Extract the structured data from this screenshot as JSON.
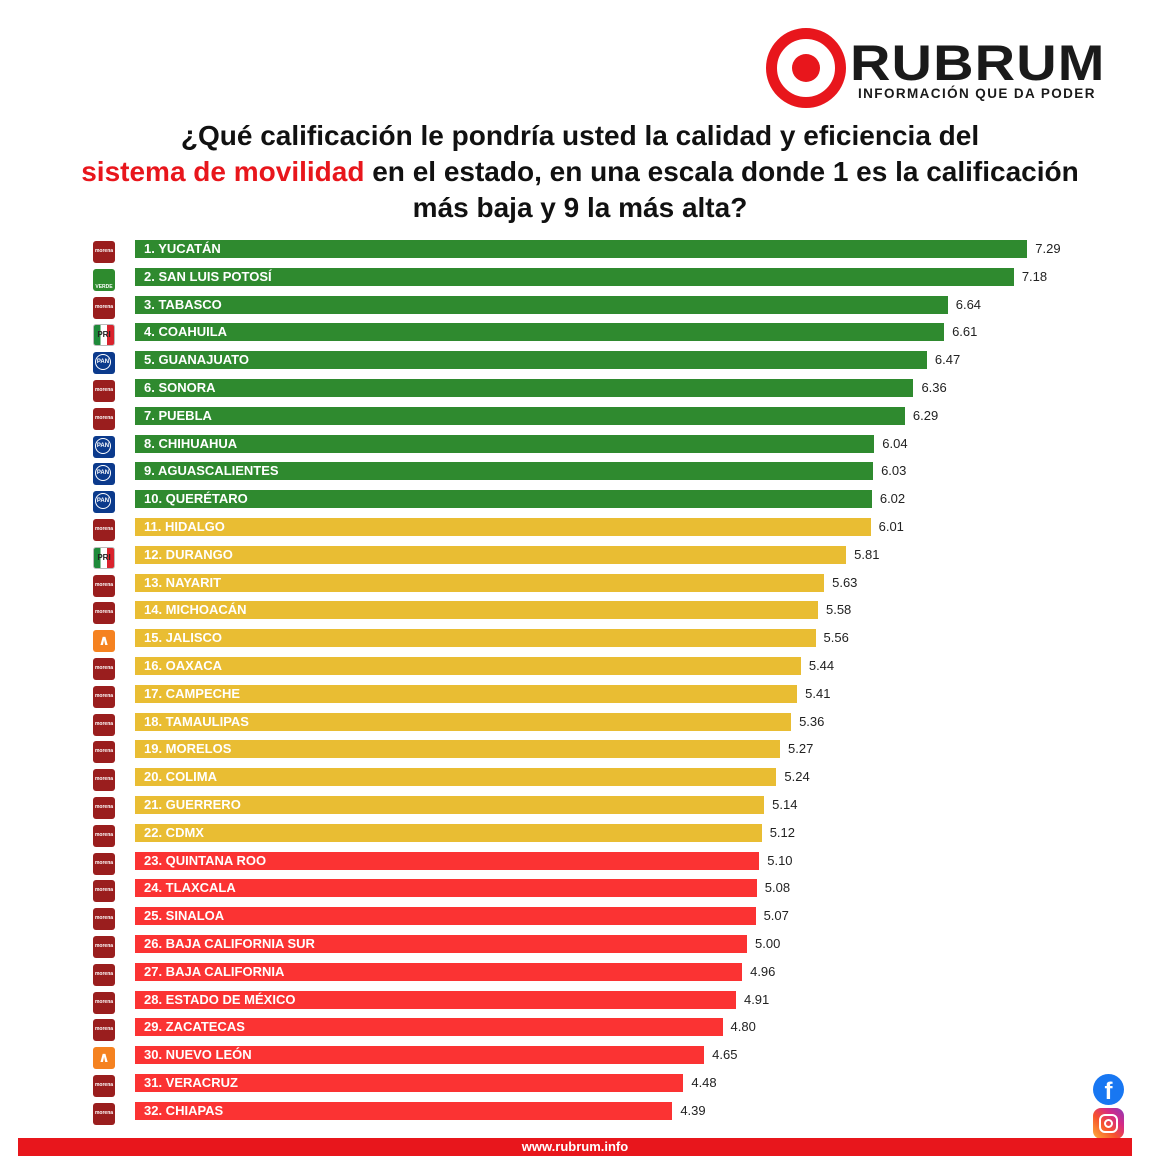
{
  "brand": {
    "name": "RUBRUM",
    "tagline": "INFORMACIÓN QUE DA PODER"
  },
  "title": {
    "part1": "¿Qué calificación le pondría usted la calidad y eficiencia del",
    "highlight": "sistema de movilidad",
    "part2": " en el estado, en una escala donde 1 es la calificación más baja y 9 la más alta?"
  },
  "colors": {
    "green": "#2f8a2f",
    "yellow": "#e9bd33",
    "red": "#fb3333",
    "accent": "#e8161c"
  },
  "chart_data": {
    "type": "bar",
    "orientation": "horizontal",
    "xlim": [
      0,
      9
    ],
    "grid": false,
    "categories": [
      "1. YUCATÁN",
      "2. SAN LUIS POTOSÍ",
      "3. TABASCO",
      "4. COAHUILA",
      "5. GUANAJUATO",
      "6. SONORA",
      "7. PUEBLA",
      "8. CHIHUAHUA",
      "9. AGUASCALIENTES",
      "10. QUERÉTARO",
      "11. HIDALGO",
      "12. DURANGO",
      "13. NAYARIT",
      "14. MICHOACÁN",
      "15. JALISCO",
      "16. OAXACA",
      "17. CAMPECHE",
      "18. TAMAULIPAS",
      "19. MORELOS",
      "20. COLIMA",
      "21. GUERRERO",
      "22. CDMX",
      "23. QUINTANA ROO",
      "24. TLAXCALA",
      "25. SINALOA",
      "26. BAJA CALIFORNIA SUR",
      "27. BAJA CALIFORNIA",
      "28. ESTADO DE MÉXICO",
      "29. ZACATECAS",
      "30. NUEVO LEÓN",
      "31. VERACRUZ",
      "32. CHIAPAS"
    ],
    "values": [
      7.29,
      7.18,
      6.64,
      6.61,
      6.47,
      6.36,
      6.29,
      6.04,
      6.03,
      6.02,
      6.01,
      5.81,
      5.63,
      5.58,
      5.56,
      5.44,
      5.41,
      5.36,
      5.27,
      5.24,
      5.14,
      5.12,
      5.1,
      5.08,
      5.07,
      5.0,
      4.96,
      4.91,
      4.8,
      4.65,
      4.48,
      4.39
    ],
    "value_labels": [
      "7.29",
      "7.18",
      "6.64",
      "6.61",
      "6.47",
      "6.36",
      "6.29",
      "6.04",
      "6.03",
      "6.02",
      "6.01",
      "5.81",
      "5.63",
      "5.58",
      "5.56",
      "5.44",
      "5.41",
      "5.36",
      "5.27",
      "5.24",
      "5.14",
      "5.12",
      "5.10",
      "5.08",
      "5.07",
      "5.00",
      "4.96",
      "4.91",
      "4.80",
      "4.65",
      "4.48",
      "4.39"
    ],
    "bar_colors": [
      "green",
      "green",
      "green",
      "green",
      "green",
      "green",
      "green",
      "green",
      "green",
      "green",
      "yellow",
      "yellow",
      "yellow",
      "yellow",
      "yellow",
      "yellow",
      "yellow",
      "yellow",
      "yellow",
      "yellow",
      "yellow",
      "yellow",
      "red",
      "red",
      "red",
      "red",
      "red",
      "red",
      "red",
      "red",
      "red",
      "red"
    ],
    "party_icons": [
      "morena",
      "verde",
      "morena",
      "pri",
      "pan",
      "morena",
      "morena",
      "pan",
      "pan",
      "pan",
      "morena",
      "pri",
      "morena",
      "morena",
      "mc",
      "morena",
      "morena",
      "morena",
      "morena",
      "morena",
      "morena",
      "morena",
      "morena",
      "morena",
      "morena",
      "morena",
      "morena",
      "morena",
      "morena",
      "mc",
      "morena",
      "morena"
    ]
  },
  "footer": {
    "url": "www.rubrum.info"
  },
  "social": {
    "facebook_icon": "facebook-icon",
    "instagram_icon": "instagram-icon"
  }
}
